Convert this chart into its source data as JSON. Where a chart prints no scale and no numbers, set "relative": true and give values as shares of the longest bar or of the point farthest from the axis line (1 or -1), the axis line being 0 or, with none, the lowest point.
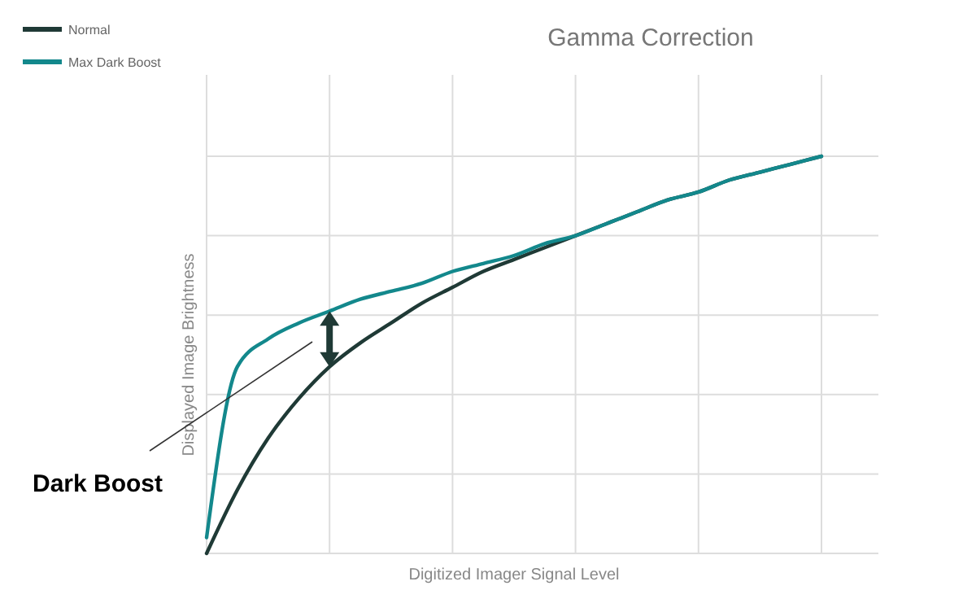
{
  "chart_data": {
    "type": "line",
    "title": "Gamma Correction",
    "xlabel": "Digitized Imager Signal Level",
    "ylabel": "Displayed Image Brightness",
    "relative": true,
    "grid": true,
    "legend": "top left",
    "line_style": "solid",
    "annotations": [
      "Dark Boost"
    ],
    "categories": [
      null,
      null,
      null,
      null,
      null,
      null,
      null,
      null,
      null,
      null,
      null,
      null,
      null,
      null,
      null,
      null,
      null,
      null,
      null,
      null,
      null
    ],
    "series": [
      {
        "name": "Normal",
        "color": "#1f3a36",
        "values": [
          0,
          0.16,
          0.29,
          0.39,
          0.47,
          0.53,
          0.58,
          0.63,
          0.67,
          0.71,
          0.74,
          0.77,
          0.8,
          0.83,
          0.86,
          0.89,
          0.91,
          0.94,
          0.96,
          0.98,
          1
        ]
      },
      {
        "name": "Max Dark Boost",
        "color": "#13888c",
        "values": [
          0.04,
          0.47,
          0.54,
          0.58,
          0.61,
          0.64,
          0.66,
          0.68,
          0.71,
          0.73,
          0.75,
          0.78,
          0.8,
          0.83,
          0.86,
          0.89,
          0.91,
          0.94,
          0.96,
          0.98,
          1
        ]
      }
    ]
  }
}
